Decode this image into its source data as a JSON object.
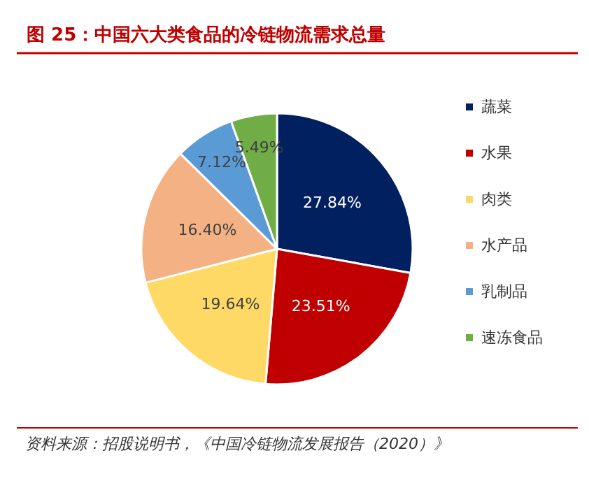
{
  "chart_data": {
    "type": "pie",
    "title": "图 25：中国六大类食品的冷链物流需求总量",
    "categories": [
      "蔬菜",
      "水果",
      "肉类",
      "水产品",
      "乳制品",
      "速冻食品"
    ],
    "values": [
      27.84,
      23.51,
      19.64,
      16.4,
      7.12,
      5.49
    ],
    "colors": [
      "#002060",
      "#c00000",
      "#ffd966",
      "#f4b183",
      "#5b9bd5",
      "#70ad47"
    ],
    "value_labels": [
      "27.84%",
      "23.51%",
      "19.64%",
      "16.40%",
      "7.12%",
      "5.49%"
    ],
    "legend": "right",
    "annotations": [
      "资料来源：招股说明书，《中国冷链物流发展报告（2020）》"
    ]
  }
}
